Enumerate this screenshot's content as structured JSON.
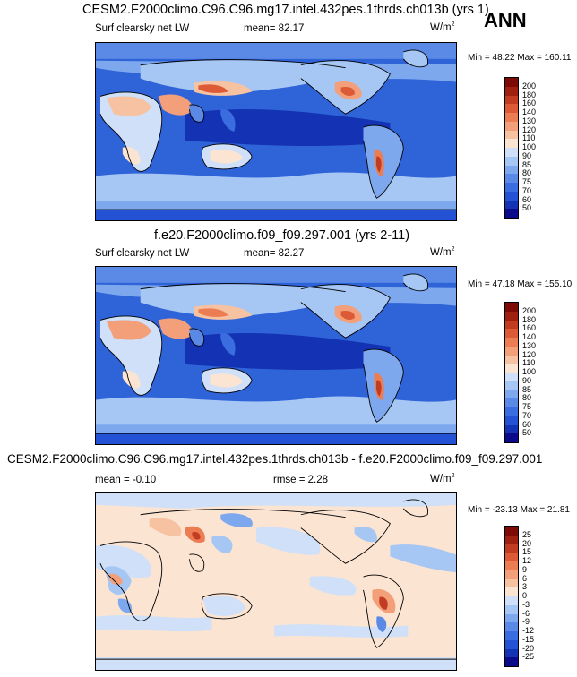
{
  "header": {
    "season": "ANN"
  },
  "panels": [
    {
      "title": "CESM2.F2000climo.C96.C96.mg17.intel.432pes.1thrds.ch013b (yrs 1)",
      "left_label": "Surf clearsky net LW",
      "center_label": "mean=  82.17",
      "units": "W/m",
      "units_sup": "2",
      "minmax": "Min =  48.22 Max = 160.11",
      "palette": [
        "#0a0a8a",
        "#1432b4",
        "#2452d4",
        "#3a6ee0",
        "#5a8ae6",
        "#7ea8ee",
        "#a6c6f4",
        "#cfe0f8",
        "#fbe4d2",
        "#f7c2a2",
        "#f3a07a",
        "#ec7c52",
        "#dd5a36",
        "#c23c22",
        "#a0200f",
        "#7e0a05"
      ],
      "ticks": [
        "200",
        "180",
        "160",
        "140",
        "130",
        "120",
        "110",
        "100",
        "90",
        "85",
        "80",
        "75",
        "70",
        "60",
        "50"
      ]
    },
    {
      "title": "f.e20.F2000climo.f09_f09.297.001 (yrs 2-11)",
      "left_label": "Surf clearsky net LW",
      "center_label": "mean=  82.27",
      "units": "W/m",
      "units_sup": "2",
      "minmax": "Min =  47.18 Max = 155.10",
      "palette": [
        "#0a0a8a",
        "#1432b4",
        "#2452d4",
        "#3a6ee0",
        "#5a8ae6",
        "#7ea8ee",
        "#a6c6f4",
        "#cfe0f8",
        "#fbe4d2",
        "#f7c2a2",
        "#f3a07a",
        "#ec7c52",
        "#dd5a36",
        "#c23c22",
        "#a0200f",
        "#7e0a05"
      ],
      "ticks": [
        "200",
        "180",
        "160",
        "140",
        "130",
        "120",
        "110",
        "100",
        "90",
        "85",
        "80",
        "75",
        "70",
        "60",
        "50"
      ]
    },
    {
      "title": "CESM2.F2000climo.C96.C96.mg17.intel.432pes.1thrds.ch013b - f.e20.F2000climo.f09_f09.297.001",
      "left_label": "mean =  -0.10",
      "center_label": "rmse =   2.28",
      "units": "W/m",
      "units_sup": "2",
      "minmax": "Min = -23.13 Max =  21.81",
      "palette": [
        "#0a0a8a",
        "#1432b4",
        "#2452d4",
        "#3a6ee0",
        "#5a8ae6",
        "#7ea8ee",
        "#a6c6f4",
        "#cfe0f8",
        "#fbe4d2",
        "#f7c2a2",
        "#f3a07a",
        "#ec7c52",
        "#dd5a36",
        "#c23c22",
        "#a0200f",
        "#7e0a05"
      ],
      "ticks": [
        "25",
        "20",
        "15",
        "12",
        "9",
        "6",
        "3",
        "0",
        "-3",
        "-6",
        "-9",
        "-12",
        "-15",
        "-20",
        "-25"
      ]
    }
  ]
}
